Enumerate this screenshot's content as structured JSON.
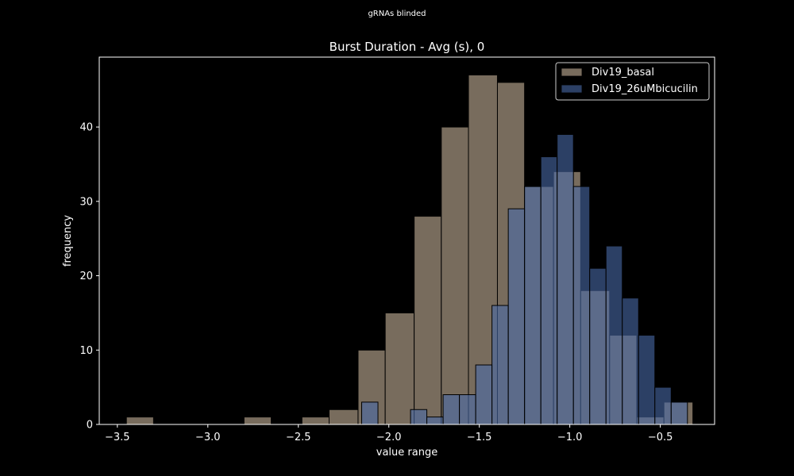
{
  "figure": {
    "suptitle": "gRNAs blinded"
  },
  "chart_data": {
    "type": "bar",
    "title": "Burst Duration - Avg (s), 0",
    "xlabel": "value range",
    "ylabel": "frequency",
    "xlim": [
      -3.6,
      -0.2
    ],
    "ylim": [
      0,
      49.4
    ],
    "xticks": [
      -3.5,
      -3.0,
      -2.5,
      -2.0,
      -1.5,
      -1.0,
      -0.5
    ],
    "xtick_labels": [
      "−3.5",
      "−3.0",
      "−2.5",
      "−2.0",
      "−1.5",
      "−1.0",
      "−0.5"
    ],
    "yticks": [
      0,
      10,
      20,
      30,
      40
    ],
    "yticks_labels": [
      "0",
      "10",
      "20",
      "30",
      "40"
    ],
    "legend_position": "upper right",
    "series": [
      {
        "name": "Div19_basal",
        "color": "#c8b49b",
        "bins": [
          {
            "left": -3.45,
            "right": -3.3,
            "count": 1
          },
          {
            "left": -2.8,
            "right": -2.65,
            "count": 1
          },
          {
            "left": -2.48,
            "right": -2.33,
            "count": 1
          },
          {
            "left": -2.33,
            "right": -2.17,
            "count": 2
          },
          {
            "left": -2.17,
            "right": -2.02,
            "count": 10
          },
          {
            "left": -2.02,
            "right": -1.86,
            "count": 15
          },
          {
            "left": -1.86,
            "right": -1.71,
            "count": 28
          },
          {
            "left": -1.71,
            "right": -1.56,
            "count": 40
          },
          {
            "left": -1.56,
            "right": -1.4,
            "count": 47
          },
          {
            "left": -1.4,
            "right": -1.25,
            "count": 46
          },
          {
            "left": -1.25,
            "right": -1.09,
            "count": 32
          },
          {
            "left": -1.09,
            "right": -0.94,
            "count": 34
          },
          {
            "left": -0.94,
            "right": -0.78,
            "count": 18
          },
          {
            "left": -0.78,
            "right": -0.63,
            "count": 12
          },
          {
            "left": -0.63,
            "right": -0.48,
            "count": 1
          },
          {
            "left": -0.48,
            "right": -0.32,
            "count": 3
          }
        ]
      },
      {
        "name": "Div19_26uMbicucilin",
        "color": "#4a6aa8",
        "bins": [
          {
            "left": -2.15,
            "right": -2.06,
            "count": 3
          },
          {
            "left": -1.88,
            "right": -1.79,
            "count": 2
          },
          {
            "left": -1.79,
            "right": -1.7,
            "count": 1
          },
          {
            "left": -1.7,
            "right": -1.61,
            "count": 4
          },
          {
            "left": -1.61,
            "right": -1.52,
            "count": 4
          },
          {
            "left": -1.52,
            "right": -1.43,
            "count": 8
          },
          {
            "left": -1.43,
            "right": -1.34,
            "count": 16
          },
          {
            "left": -1.34,
            "right": -1.25,
            "count": 29
          },
          {
            "left": -1.25,
            "right": -1.16,
            "count": 32
          },
          {
            "left": -1.16,
            "right": -1.07,
            "count": 36
          },
          {
            "left": -1.07,
            "right": -0.98,
            "count": 39
          },
          {
            "left": -0.98,
            "right": -0.89,
            "count": 32
          },
          {
            "left": -0.89,
            "right": -0.8,
            "count": 21
          },
          {
            "left": -0.8,
            "right": -0.71,
            "count": 24
          },
          {
            "left": -0.71,
            "right": -0.62,
            "count": 17
          },
          {
            "left": -0.62,
            "right": -0.53,
            "count": 12
          },
          {
            "left": -0.53,
            "right": -0.44,
            "count": 5
          },
          {
            "left": -0.44,
            "right": -0.35,
            "count": 3
          }
        ]
      }
    ]
  },
  "colors": {
    "background": "#000000",
    "foreground": "#ffffff",
    "bar_edge": "#000000"
  }
}
